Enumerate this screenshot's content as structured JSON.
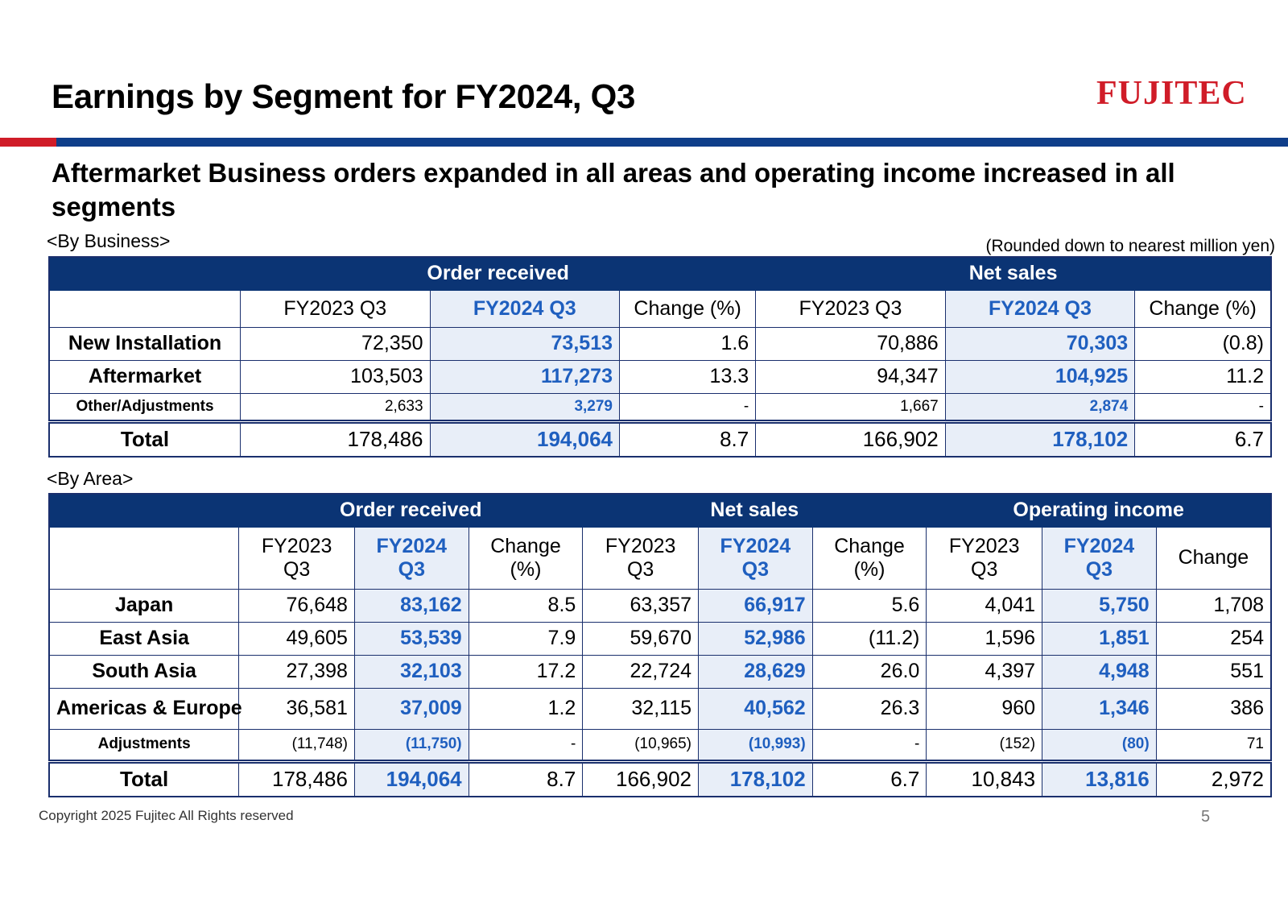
{
  "header": {
    "title": "Earnings by Segment for FY2024, Q3",
    "logo_text": "FUJITEC",
    "subtitle": "Aftermarket Business orders expanded in all areas and operating income increased in all segments",
    "accent_red": "#d01c28",
    "accent_blue": "#0f3e8a"
  },
  "business": {
    "label": "<By Business>",
    "unit_note": "(Rounded down to nearest million yen)",
    "groups": [
      "Order received",
      "Net sales"
    ],
    "columns": [
      "FY2023 Q3",
      "FY2024 Q3",
      "Change (%)",
      "FY2023 Q3",
      "FY2024 Q3",
      "Change (%)"
    ],
    "rows": [
      {
        "label": "New Installation",
        "values": [
          "72,350",
          "73,513",
          "1.6",
          "70,886",
          "70,303",
          "(0.8)"
        ]
      },
      {
        "label": "Aftermarket",
        "values": [
          "103,503",
          "117,273",
          "13.3",
          "94,347",
          "104,925",
          "11.2"
        ]
      },
      {
        "label": "Other/Adjustments",
        "values": [
          "2,633",
          "3,279",
          "-",
          "1,667",
          "2,874",
          "-"
        ]
      },
      {
        "label": "Total",
        "values": [
          "178,486",
          "194,064",
          "8.7",
          "166,902",
          "178,102",
          "6.7"
        ]
      }
    ]
  },
  "area": {
    "label": "<By Area>",
    "groups": [
      "Order received",
      "Net sales",
      "Operating income"
    ],
    "columns": [
      {
        "line1": "FY2023",
        "line2": "Q3"
      },
      {
        "line1": "FY2024",
        "line2": "Q3"
      },
      {
        "line1": "Change",
        "line2": "(%)"
      },
      {
        "line1": "FY2023",
        "line2": "Q3"
      },
      {
        "line1": "FY2024",
        "line2": "Q3"
      },
      {
        "line1": "Change",
        "line2": "(%)"
      },
      {
        "line1": "FY2023",
        "line2": "Q3"
      },
      {
        "line1": "FY2024",
        "line2": "Q3"
      },
      {
        "line1": "Change",
        "line2": ""
      }
    ],
    "rows": [
      {
        "label": "Japan",
        "values": [
          "76,648",
          "83,162",
          "8.5",
          "63,357",
          "66,917",
          "5.6",
          "4,041",
          "5,750",
          "1,708"
        ]
      },
      {
        "label": "East Asia",
        "values": [
          "49,605",
          "53,539",
          "7.9",
          "59,670",
          "52,986",
          "(11.2)",
          "1,596",
          "1,851",
          "254"
        ]
      },
      {
        "label": "South Asia",
        "values": [
          "27,398",
          "32,103",
          "17.2",
          "22,724",
          "28,629",
          "26.0",
          "4,397",
          "4,948",
          "551"
        ]
      },
      {
        "label": "Americas & Europe",
        "values": [
          "36,581",
          "37,009",
          "1.2",
          "32,115",
          "40,562",
          "26.3",
          "960",
          "1,346",
          "386"
        ]
      },
      {
        "label": "Adjustments",
        "values": [
          "(11,748)",
          "(11,750)",
          "-",
          "(10,965)",
          "(10,993)",
          "-",
          "(152)",
          "(80)",
          "71"
        ]
      },
      {
        "label": "Total",
        "values": [
          "178,486",
          "194,064",
          "8.7",
          "166,902",
          "178,102",
          "6.7",
          "10,843",
          "13,816",
          "2,972"
        ]
      }
    ]
  },
  "footer": {
    "copyright": "Copyright 2025 Fujitec All Rights reserved",
    "page_number": "5"
  }
}
